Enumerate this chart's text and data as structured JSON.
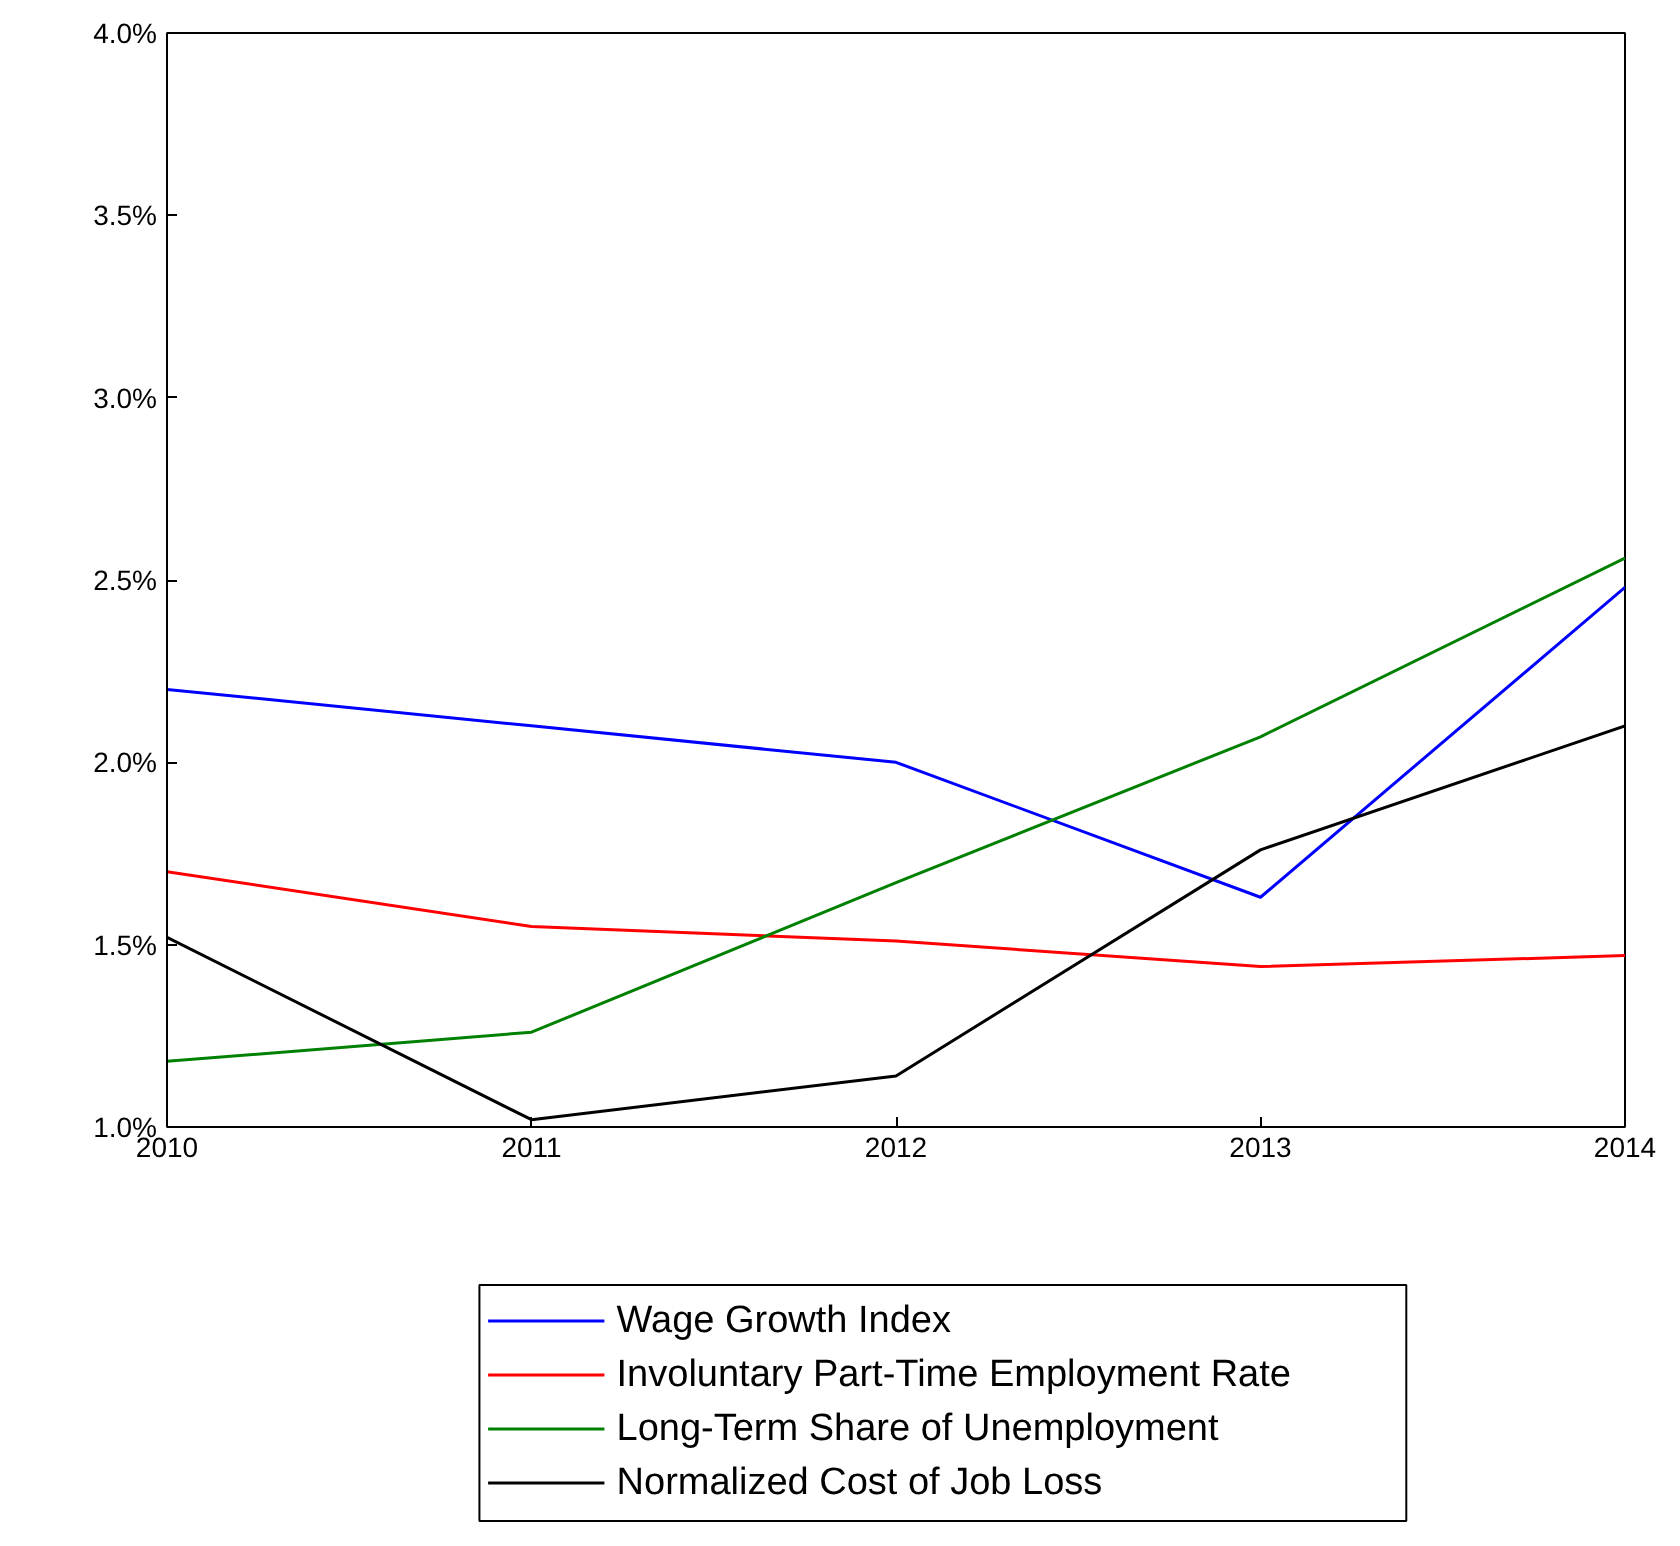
{
  "chart_data": {
    "type": "line",
    "x": [
      2010,
      2011,
      2012,
      2013,
      2014
    ],
    "series": [
      {
        "name": "Wage Growth Index",
        "color": "#0000ff",
        "values": [
          2.2,
          2.1,
          2.0,
          1.63,
          2.48
        ]
      },
      {
        "name": "Involuntary Part-Time Employment Rate",
        "color": "#ff0000",
        "values": [
          1.7,
          1.55,
          1.51,
          1.44,
          1.47
        ]
      },
      {
        "name": "Long-Term Share of Unemployment",
        "color": "#008000",
        "values": [
          1.18,
          1.26,
          1.67,
          2.07,
          2.56
        ]
      },
      {
        "name": "Normalized Cost of Job Loss",
        "color": "#000000",
        "values": [
          1.52,
          1.02,
          1.14,
          1.76,
          2.1
        ]
      }
    ],
    "xlim": [
      2010,
      2014
    ],
    "xticks": [
      2010,
      2011,
      2012,
      2013,
      2014
    ],
    "ylim": [
      1.0,
      4.0
    ],
    "yticks": [
      {
        "value": 1.0,
        "label": "1.0%"
      },
      {
        "value": 1.5,
        "label": "1.5%"
      },
      {
        "value": 2.0,
        "label": "2.0%"
      },
      {
        "value": 2.5,
        "label": "2.5%"
      },
      {
        "value": 3.0,
        "label": "3.0%"
      },
      {
        "value": 3.5,
        "label": "3.5%"
      },
      {
        "value": 4.0,
        "label": "4.0%"
      }
    ],
    "grid": false,
    "legend": "bottom",
    "marker": "none",
    "line_style": "solid"
  }
}
